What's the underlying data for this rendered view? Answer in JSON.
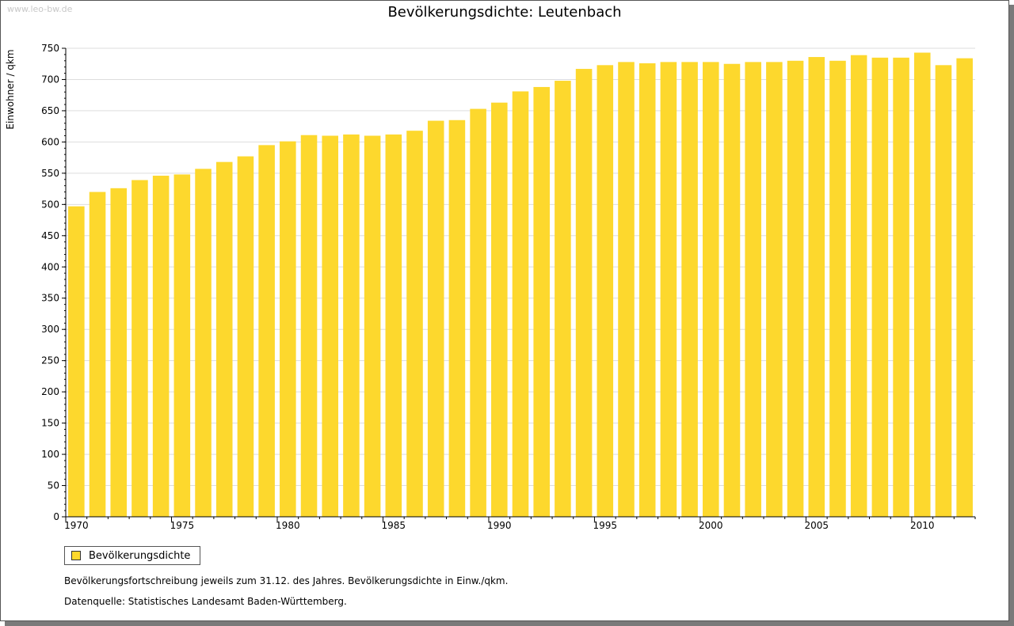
{
  "watermark": "www.leo-bw.de",
  "legend": {
    "label": "Bevölkerungsdichte"
  },
  "footnotes": {
    "line1": "Bevölkerungsfortschreibung jeweils zum 31.12. des Jahres. Bevölkerungsdichte in Einw./qkm.",
    "line2": "Datenquelle: Statistisches Landesamt Baden-Württemberg."
  },
  "colors": {
    "bar": "#fdd82d",
    "grid": "#dddddd",
    "axis": "#000000"
  },
  "chart_data": {
    "type": "bar",
    "title": "Bevölkerungsdichte: Leutenbach",
    "xlabel": "",
    "ylabel": "Einwohner / qkm",
    "ylim": [
      0,
      750
    ],
    "yticks": [
      0,
      50,
      100,
      150,
      200,
      250,
      300,
      350,
      400,
      450,
      500,
      550,
      600,
      650,
      700,
      750
    ],
    "xtick_labels": [
      "1970",
      "1975",
      "1980",
      "1985",
      "1990",
      "1995",
      "2000",
      "2005",
      "2010"
    ],
    "grid": true,
    "legend": "bottom-left",
    "categories": [
      "1970",
      "1971",
      "1972",
      "1973",
      "1974",
      "1975",
      "1976",
      "1977",
      "1978",
      "1979",
      "1980",
      "1981",
      "1982",
      "1983",
      "1984",
      "1985",
      "1986",
      "1987",
      "1988",
      "1989",
      "1990",
      "1991",
      "1992",
      "1993",
      "1994",
      "1995",
      "1996",
      "1997",
      "1998",
      "1999",
      "2000",
      "2001",
      "2002",
      "2003",
      "2004",
      "2005",
      "2006",
      "2007",
      "2008",
      "2009",
      "2010",
      "2011",
      "2012"
    ],
    "series": [
      {
        "name": "Bevölkerungsdichte",
        "values": [
          497,
          520,
          526,
          539,
          546,
          548,
          557,
          568,
          577,
          595,
          601,
          611,
          610,
          612,
          610,
          612,
          618,
          634,
          635,
          653,
          663,
          681,
          688,
          698,
          717,
          723,
          728,
          726,
          728,
          728,
          728,
          725,
          728,
          728,
          730,
          736,
          730,
          739,
          735,
          735,
          743,
          723,
          734
        ]
      }
    ]
  }
}
